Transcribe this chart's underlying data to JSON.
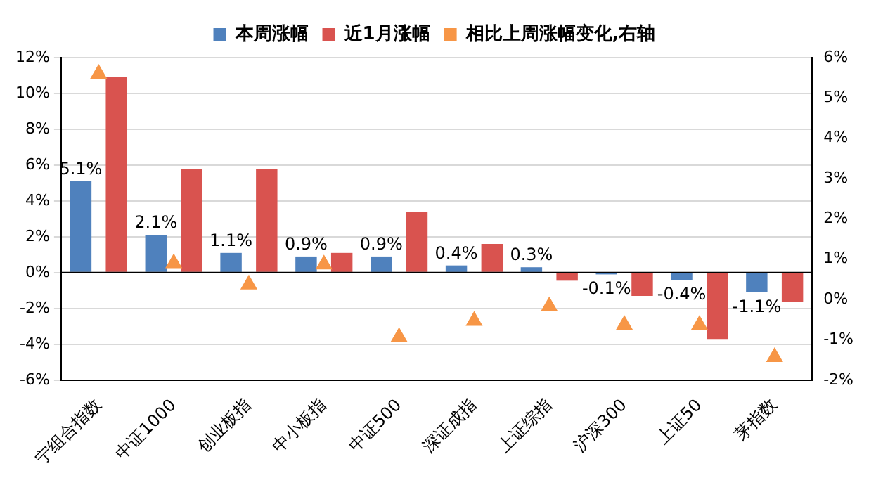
{
  "chart_data": {
    "type": "bar",
    "categories": [
      "宁组合指数",
      "中证1000",
      "创业板指",
      "中小板指",
      "中证500",
      "深证成指",
      "上证综指",
      "沪深300",
      "上证50",
      "茅指数"
    ],
    "series": [
      {
        "name": "本周涨幅",
        "color": "#4f81bd",
        "values": [
          5.1,
          2.1,
          1.1,
          0.9,
          0.9,
          0.4,
          0.3,
          -0.1,
          -0.4,
          -1.1
        ],
        "value_labels": [
          "5.1%",
          "2.1%",
          "1.1%",
          "0.9%",
          "0.9%",
          "0.4%",
          "0.3%",
          "-0.1%",
          "-0.4%",
          "-1.1%"
        ]
      },
      {
        "name": "近1月涨幅",
        "color": "#d9534f",
        "values": [
          10.9,
          5.8,
          5.8,
          1.1,
          3.4,
          1.6,
          -0.45,
          -1.3,
          -3.7,
          -1.65
        ]
      },
      {
        "name": "相比上周涨幅变化,右轴",
        "type": "scatter",
        "axis": "y2",
        "marker": "triangle",
        "color": "#f79646",
        "values": [
          5.6,
          0.9,
          0.37,
          0.87,
          -0.93,
          -0.53,
          -0.17,
          -0.63,
          -0.63,
          -1.43
        ]
      }
    ],
    "ylim": [
      -6,
      12
    ],
    "yticks": [
      {
        "value": -6,
        "label": "-6%"
      },
      {
        "value": -4,
        "label": "-4%"
      },
      {
        "value": -2,
        "label": "-2%"
      },
      {
        "value": 0,
        "label": "0%"
      },
      {
        "value": 2,
        "label": "2%"
      },
      {
        "value": 4,
        "label": "4%"
      },
      {
        "value": 6,
        "label": "6%"
      },
      {
        "value": 8,
        "label": "8%"
      },
      {
        "value": 10,
        "label": "10%"
      },
      {
        "value": 12,
        "label": "12%"
      }
    ],
    "y2lim": [
      -2,
      6
    ],
    "y2ticks": [
      {
        "value": -2,
        "label": "-2%"
      },
      {
        "value": -1,
        "label": "-1%"
      },
      {
        "value": 0,
        "label": "0%"
      },
      {
        "value": 1,
        "label": "1%"
      },
      {
        "value": 2,
        "label": "2%"
      },
      {
        "value": 3,
        "label": "3%"
      },
      {
        "value": 4,
        "label": "4%"
      },
      {
        "value": 5,
        "label": "5%"
      },
      {
        "value": 6,
        "label": "6%"
      }
    ],
    "grid": "y",
    "legend": "top"
  }
}
